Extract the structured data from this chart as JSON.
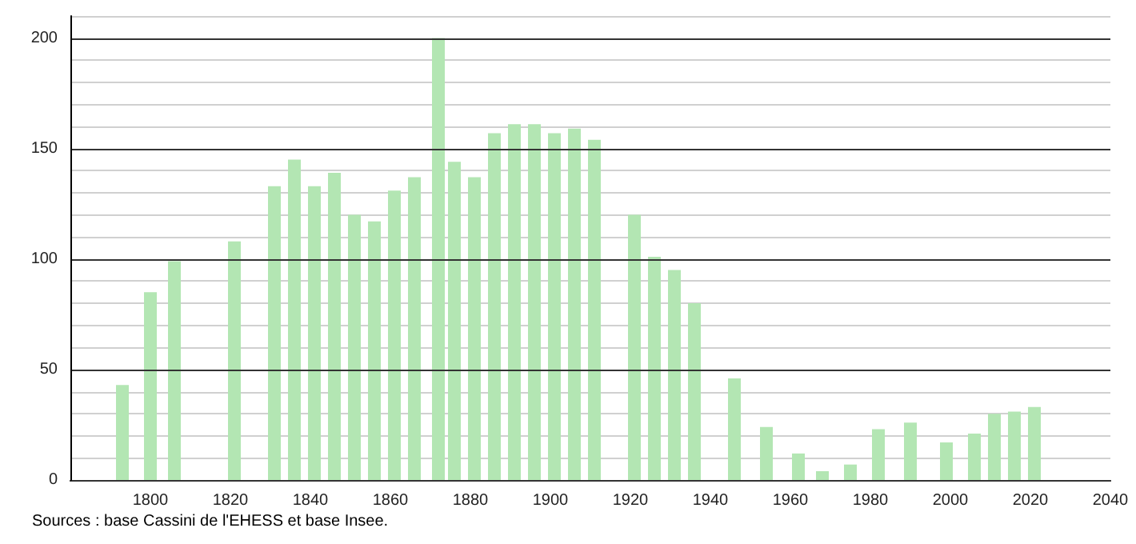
{
  "chart_data": {
    "type": "bar",
    "x": [
      1793,
      1800,
      1806,
      1821,
      1831,
      1836,
      1841,
      1846,
      1851,
      1856,
      1861,
      1866,
      1872,
      1876,
      1881,
      1886,
      1891,
      1896,
      1901,
      1906,
      1911,
      1921,
      1926,
      1931,
      1936,
      1946,
      1954,
      1962,
      1968,
      1975,
      1982,
      1990,
      1999,
      2006,
      2011,
      2016,
      2021
    ],
    "values": [
      43,
      85,
      99,
      108,
      133,
      145,
      133,
      139,
      120,
      117,
      131,
      137,
      200,
      144,
      137,
      157,
      161,
      161,
      157,
      159,
      154,
      120,
      101,
      95,
      80,
      46,
      24,
      12,
      4,
      7,
      23,
      26,
      17,
      21,
      30,
      31,
      33
    ],
    "color": "#b3e6b3",
    "xlim": [
      1780,
      2040
    ],
    "xticks": [
      1800,
      1820,
      1840,
      1860,
      1880,
      1900,
      1920,
      1940,
      1960,
      1980,
      2000,
      2020,
      2040
    ],
    "ylim": [
      0,
      210
    ],
    "yticks": [
      0,
      50,
      100,
      150,
      200
    ],
    "grid": "y",
    "annotations": [
      "Sources : base Cassini de l'EHESS et base Insee."
    ]
  }
}
